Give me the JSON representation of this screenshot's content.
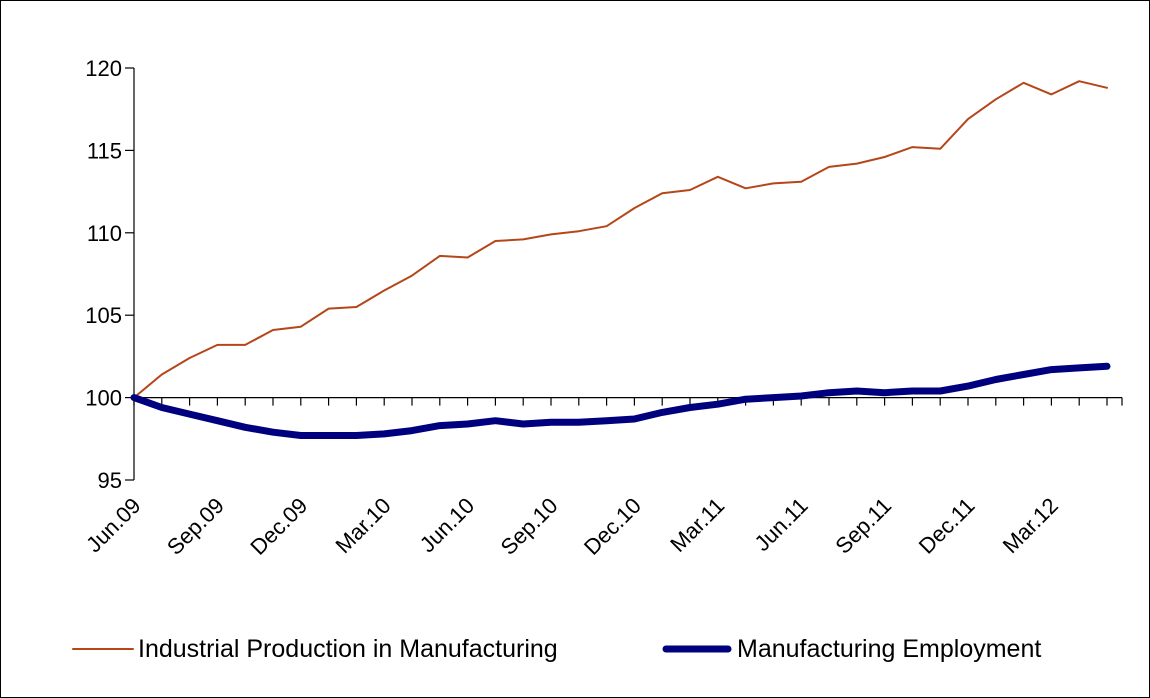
{
  "chart_data": {
    "type": "line",
    "title": "",
    "xlabel": "",
    "ylabel": "",
    "ylim": [
      95,
      120
    ],
    "yticks": [
      95,
      100,
      105,
      110,
      115,
      120
    ],
    "x_tick_labels": [
      "Jun.09",
      "Sep.09",
      "Dec.09",
      "Mar.10",
      "Jun.10",
      "Sep.10",
      "Dec.10",
      "Mar.11",
      "Jun.11",
      "Sep.11",
      "Dec.11",
      "Mar.12"
    ],
    "x": [
      "Jun.09",
      "Jul.09",
      "Aug.09",
      "Sep.09",
      "Oct.09",
      "Nov.09",
      "Dec.09",
      "Jan.10",
      "Feb.10",
      "Mar.10",
      "Apr.10",
      "May.10",
      "Jun.10",
      "Jul.10",
      "Aug.10",
      "Sep.10",
      "Oct.10",
      "Nov.10",
      "Dec.10",
      "Jan.11",
      "Feb.11",
      "Mar.11",
      "Apr.11",
      "May.11",
      "Jun.11",
      "Jul.11",
      "Aug.11",
      "Sep.11",
      "Oct.11",
      "Nov.11",
      "Dec.11",
      "Jan.12",
      "Feb.12",
      "Mar.12",
      "Apr.12",
      "May.12"
    ],
    "grid": false,
    "legend_position": "bottom",
    "series": [
      {
        "name": "Industrial Production in Manufacturing",
        "color": "#B5461A",
        "values": [
          100.0,
          101.4,
          102.4,
          103.2,
          103.2,
          104.1,
          104.3,
          105.4,
          105.5,
          106.5,
          107.4,
          108.6,
          108.5,
          109.5,
          109.6,
          109.9,
          110.1,
          110.4,
          111.5,
          112.4,
          112.6,
          113.4,
          112.7,
          113.0,
          113.1,
          114.0,
          114.2,
          114.6,
          115.2,
          115.1,
          116.9,
          118.1,
          119.1,
          118.4,
          119.2,
          118.8
        ]
      },
      {
        "name": "Manufacturing Employment",
        "color": "#00007F",
        "values": [
          100.0,
          99.4,
          99.0,
          98.6,
          98.2,
          97.9,
          97.7,
          97.7,
          97.7,
          97.8,
          98.0,
          98.3,
          98.4,
          98.6,
          98.4,
          98.5,
          98.5,
          98.6,
          98.7,
          99.1,
          99.4,
          99.6,
          99.9,
          100.0,
          100.1,
          100.3,
          100.4,
          100.3,
          100.4,
          100.4,
          100.7,
          101.1,
          101.4,
          101.7,
          101.8,
          101.9
        ]
      }
    ]
  }
}
